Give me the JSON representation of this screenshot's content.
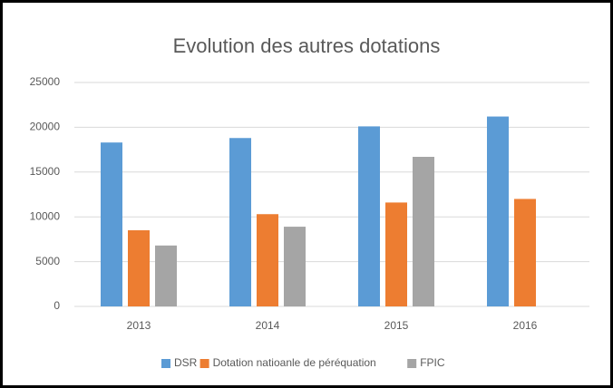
{
  "chart_data": {
    "type": "bar",
    "title": "Evolution des autres dotations",
    "categories": [
      "2013",
      "2014",
      "2015",
      "2016"
    ],
    "series": [
      {
        "name": "DSR",
        "color": "#5b9bd5",
        "values": [
          18300,
          18800,
          20100,
          21200
        ]
      },
      {
        "name": "Dotation natioanle de péréquation",
        "color": "#ed7d31",
        "values": [
          8500,
          10300,
          11600,
          12000
        ]
      },
      {
        "name": "FPIC",
        "color": "#a5a5a5",
        "values": [
          6800,
          8900,
          16700,
          null
        ]
      }
    ],
    "ylim": [
      0,
      25000
    ],
    "yticks": [
      0,
      5000,
      10000,
      15000,
      20000,
      25000
    ],
    "grid": true,
    "legend": "bottom"
  }
}
